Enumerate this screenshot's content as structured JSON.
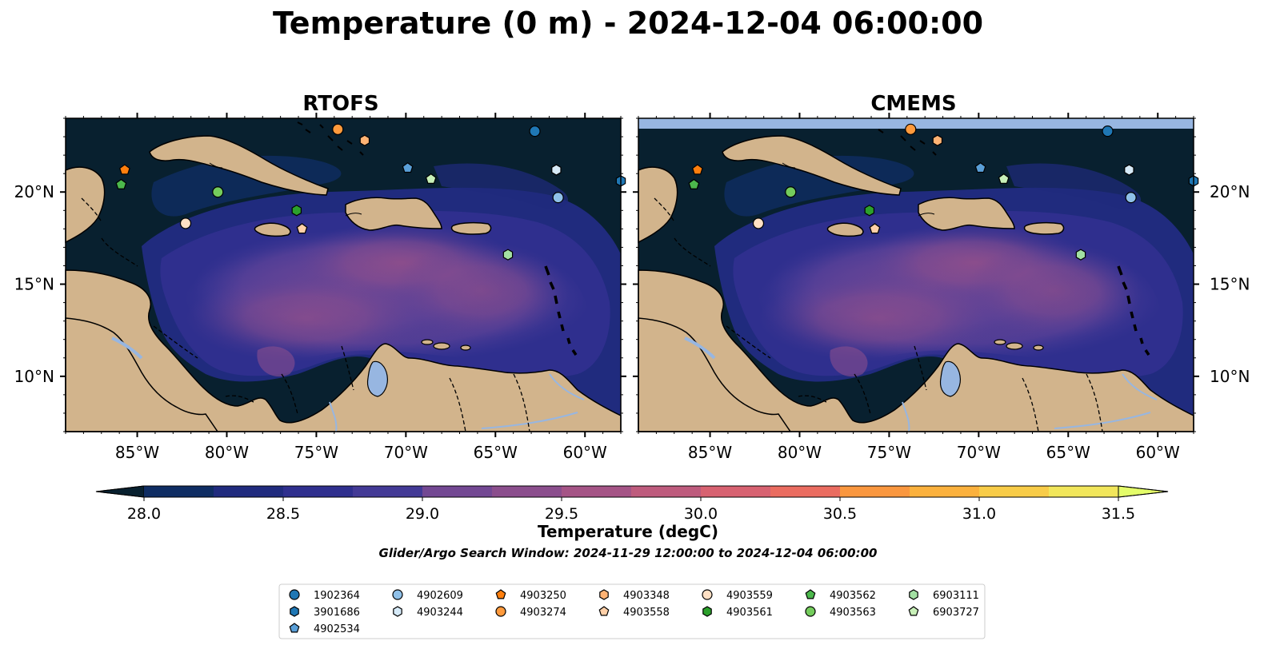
{
  "title": "Temperature (0 m) - 2024-12-04 06:00:00",
  "panels": [
    {
      "title": "RTOFS",
      "missing_band": false
    },
    {
      "title": "CMEMS",
      "missing_band": true
    }
  ],
  "map_extent": {
    "lon": [
      -89,
      -58
    ],
    "lat": [
      7,
      24
    ]
  },
  "x_ticks": [
    {
      "value": -85,
      "label": "85°W"
    },
    {
      "value": -80,
      "label": "80°W"
    },
    {
      "value": -75,
      "label": "75°W"
    },
    {
      "value": -70,
      "label": "70°W"
    },
    {
      "value": -65,
      "label": "65°W"
    },
    {
      "value": -60,
      "label": "60°W"
    }
  ],
  "y_ticks": [
    {
      "value": 20,
      "label": "20°N"
    },
    {
      "value": 15,
      "label": "15°N"
    },
    {
      "value": 10,
      "label": "10°N"
    }
  ],
  "colorbar": {
    "label": "Temperature (degC)",
    "min": 28.0,
    "max": 31.5,
    "step": 0.25,
    "extend": "both",
    "tick_labels": [
      "28.0",
      "28.5",
      "29.0",
      "29.5",
      "30.0",
      "30.5",
      "31.0",
      "31.5"
    ],
    "colors": [
      "#08202f",
      "#0f2d63",
      "#202b7e",
      "#2f2f8e",
      "#433a96",
      "#5a4197",
      "#734893",
      "#8b4e8d",
      "#a55486",
      "#be5b7d",
      "#d76271",
      "#ea6c60",
      "#f5804d",
      "#fa973f",
      "#fbb13d",
      "#f8cc48",
      "#f1e65b",
      "#e4fd6a"
    ]
  },
  "colors": {
    "land": "#d2b48c",
    "ocean_deep": "#08202f",
    "lake": "#97b6e1",
    "river": "#97b6e1"
  },
  "search_window": "Glider/Argo Search Window: 2024-11-29 12:00:00 to 2024-12-04 06:00:00",
  "legend": [
    {
      "id": "1902364",
      "marker": "circle",
      "color": "#1f77b4"
    },
    {
      "id": "3901686",
      "marker": "hexagon",
      "color": "#1f77b4"
    },
    {
      "id": "4902534",
      "marker": "pentagon",
      "color": "#5a9fd8"
    },
    {
      "id": "4902609",
      "marker": "circle",
      "color": "#8fc0e8"
    },
    {
      "id": "4903244",
      "marker": "hexagon",
      "color": "#d6eaf8"
    },
    {
      "id": "4903250",
      "marker": "pentagon",
      "color": "#ff7f0e"
    },
    {
      "id": "4903274",
      "marker": "circle",
      "color": "#ff9a3c"
    },
    {
      "id": "4903348",
      "marker": "hexagon",
      "color": "#ffb374"
    },
    {
      "id": "4903558",
      "marker": "pentagon",
      "color": "#ffd0a8"
    },
    {
      "id": "4903559",
      "marker": "circle",
      "color": "#ffe0c4"
    },
    {
      "id": "4903561",
      "marker": "hexagon",
      "color": "#2ca02c"
    },
    {
      "id": "4903562",
      "marker": "pentagon",
      "color": "#4cb84c"
    },
    {
      "id": "4903563",
      "marker": "circle",
      "color": "#74cc5c"
    },
    {
      "id": "6903111",
      "marker": "hexagon",
      "color": "#a3e0a3"
    },
    {
      "id": "6903727",
      "marker": "pentagon",
      "color": "#c8f0b8"
    }
  ],
  "floats": [
    {
      "id": "1902364",
      "lon": -62.8,
      "lat": 23.3
    },
    {
      "id": "3901686",
      "lon": -58.0,
      "lat": 20.6
    },
    {
      "id": "4902534",
      "lon": -69.9,
      "lat": 21.3
    },
    {
      "id": "4902609",
      "lon": -61.5,
      "lat": 19.7
    },
    {
      "id": "4903244",
      "lon": -61.6,
      "lat": 21.2
    },
    {
      "id": "4903250",
      "lon": -85.7,
      "lat": 21.2
    },
    {
      "id": "4903274",
      "lon": -73.8,
      "lat": 23.4
    },
    {
      "id": "4903348",
      "lon": -72.3,
      "lat": 22.8
    },
    {
      "id": "4903558",
      "lon": -75.8,
      "lat": 18.0
    },
    {
      "id": "4903559",
      "lon": -82.3,
      "lat": 18.3
    },
    {
      "id": "4903561",
      "lon": -76.1,
      "lat": 19.0
    },
    {
      "id": "4903562",
      "lon": -85.9,
      "lat": 20.4
    },
    {
      "id": "4903563",
      "lon": -80.5,
      "lat": 20.0
    },
    {
      "id": "6903111",
      "lon": -64.3,
      "lat": 16.6
    },
    {
      "id": "6903727",
      "lon": -68.6,
      "lat": 20.7
    }
  ]
}
